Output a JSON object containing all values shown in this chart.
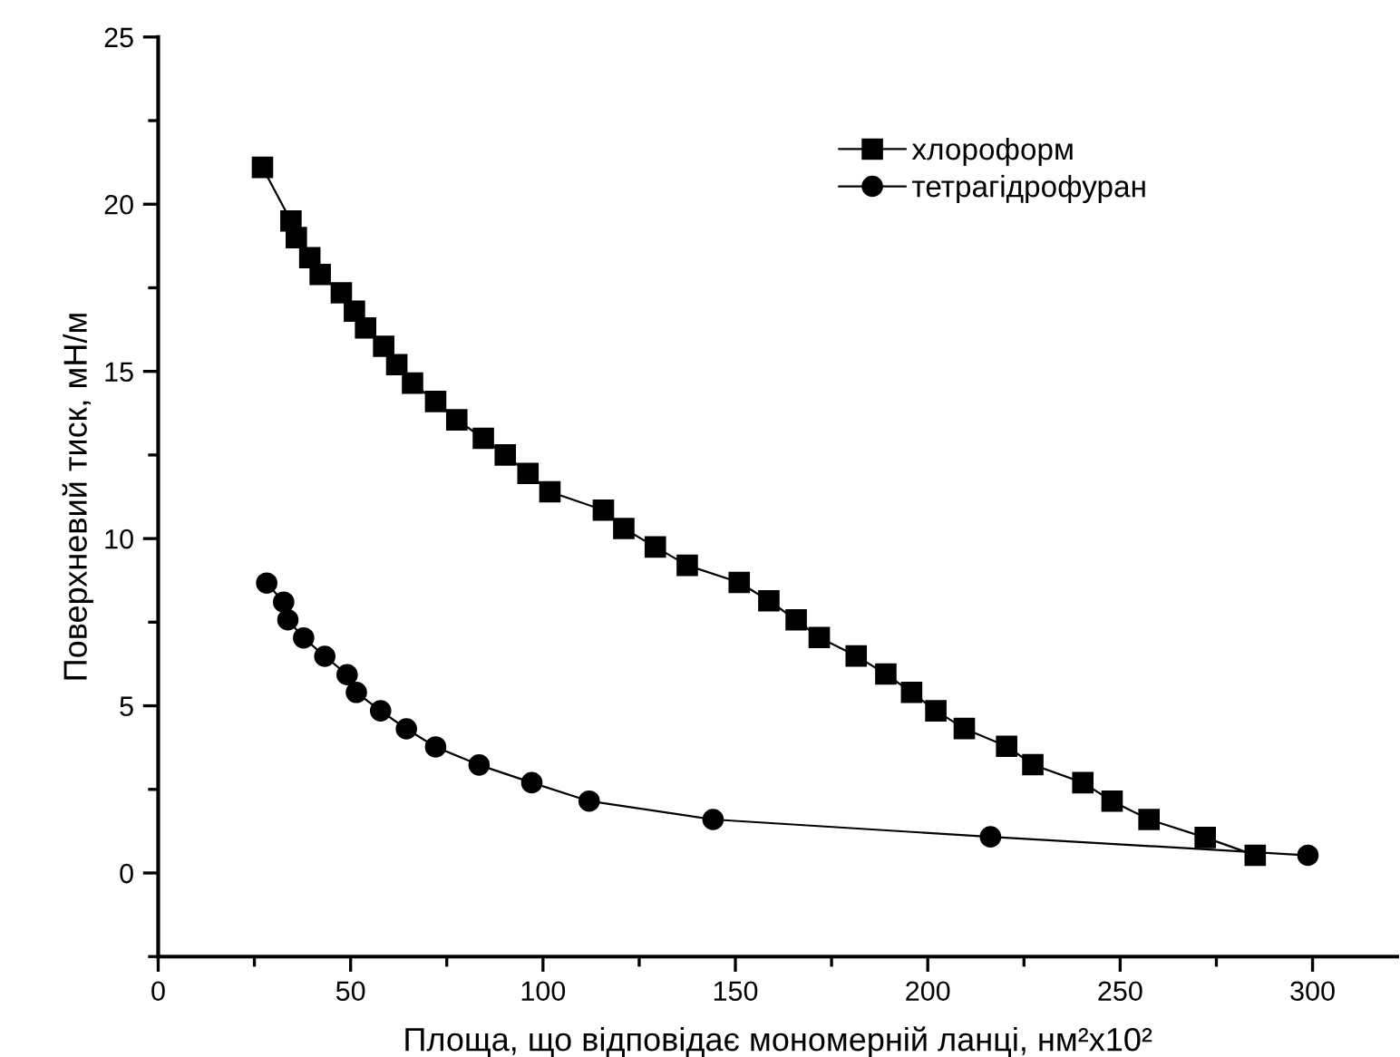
{
  "chart_data": {
    "type": "line",
    "xlabel": "Площа, що відповідає мономерній ланці, нм²x10²",
    "ylabel": "Поверхневий тиск, мН/м",
    "xlim": [
      0,
      322
    ],
    "ylim": [
      -2.5,
      25
    ],
    "xticks": [
      0,
      50,
      100,
      150,
      200,
      250,
      300
    ],
    "yticks": [
      0,
      5,
      10,
      15,
      20,
      25
    ],
    "grid": false,
    "legend": "top right",
    "line_style": "solid",
    "series": [
      {
        "name": "хлороформ",
        "color": "#000000",
        "marker": "square",
        "x": [
          27.1,
          34.5,
          35.9,
          39.4,
          42.1,
          47.6,
          51.0,
          53.9,
          58.6,
          62.0,
          66.1,
          72.1,
          77.6,
          84.5,
          90.2,
          96.1,
          101.8,
          115.7,
          121.0,
          129.2,
          137.5,
          151.0,
          158.7,
          165.8,
          171.8,
          181.4,
          189.1,
          195.8,
          202.1,
          209.5,
          220.5,
          227.3,
          240.3,
          247.9,
          257.5,
          272.1,
          285.1
        ],
        "values": [
          21.1,
          19.5,
          19.0,
          18.4,
          17.9,
          17.35,
          16.8,
          16.3,
          15.75,
          15.2,
          14.65,
          14.1,
          13.55,
          13.0,
          12.5,
          11.95,
          11.4,
          10.85,
          10.3,
          9.75,
          9.2,
          8.69,
          8.14,
          7.57,
          7.04,
          6.49,
          5.95,
          5.4,
          4.85,
          4.32,
          3.79,
          3.24,
          2.7,
          2.15,
          1.6,
          1.06,
          0.53
        ]
      },
      {
        "name": "тетрагідрофуран",
        "color": "#000000",
        "marker": "circle",
        "x": [
          28.2,
          32.6,
          33.7,
          37.8,
          43.3,
          49.1,
          51.5,
          57.8,
          64.5,
          72.1,
          83.4,
          97.1,
          112.0,
          144.2,
          216.3,
          298.8
        ],
        "values": [
          8.67,
          8.1,
          7.57,
          7.03,
          6.48,
          5.93,
          5.4,
          4.85,
          4.31,
          3.77,
          3.23,
          2.7,
          2.15,
          1.6,
          1.08,
          0.53
        ]
      }
    ]
  }
}
